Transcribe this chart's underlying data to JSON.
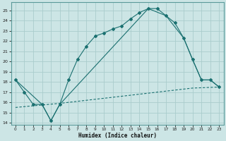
{
  "xlabel": "Humidex (Indice chaleur)",
  "bg_color": "#cce5e5",
  "grid_color": "#aacccc",
  "line_color": "#1a7070",
  "xlim": [
    -0.5,
    23.5
  ],
  "ylim": [
    13.8,
    25.8
  ],
  "yticks": [
    14,
    15,
    16,
    17,
    18,
    19,
    20,
    21,
    22,
    23,
    24,
    25
  ],
  "xticks": [
    0,
    1,
    2,
    3,
    4,
    5,
    6,
    7,
    8,
    9,
    10,
    11,
    12,
    13,
    14,
    15,
    16,
    17,
    18,
    19,
    20,
    21,
    22,
    23
  ],
  "curve1_x": [
    0,
    1,
    2,
    3,
    4,
    5,
    6,
    7,
    8,
    9,
    10,
    11,
    12,
    13,
    14,
    15,
    16,
    17,
    18,
    19,
    20,
    21,
    22,
    23
  ],
  "curve1_y": [
    18.2,
    17.0,
    15.8,
    15.8,
    14.2,
    15.8,
    18.2,
    20.2,
    21.5,
    22.5,
    22.8,
    23.2,
    23.5,
    24.2,
    24.8,
    25.2,
    25.2,
    24.5,
    23.8,
    22.3,
    20.2,
    18.2,
    18.2,
    17.5
  ],
  "curve2_x": [
    0,
    3,
    4,
    5,
    15,
    17,
    19,
    20,
    21,
    22,
    23
  ],
  "curve2_y": [
    18.2,
    15.8,
    14.2,
    15.8,
    25.2,
    24.5,
    22.3,
    20.2,
    18.2,
    18.2,
    17.5
  ],
  "curve3_x": [
    0,
    5,
    10,
    15,
    20,
    23
  ],
  "curve3_y": [
    15.5,
    15.9,
    16.4,
    16.9,
    17.4,
    17.5
  ]
}
